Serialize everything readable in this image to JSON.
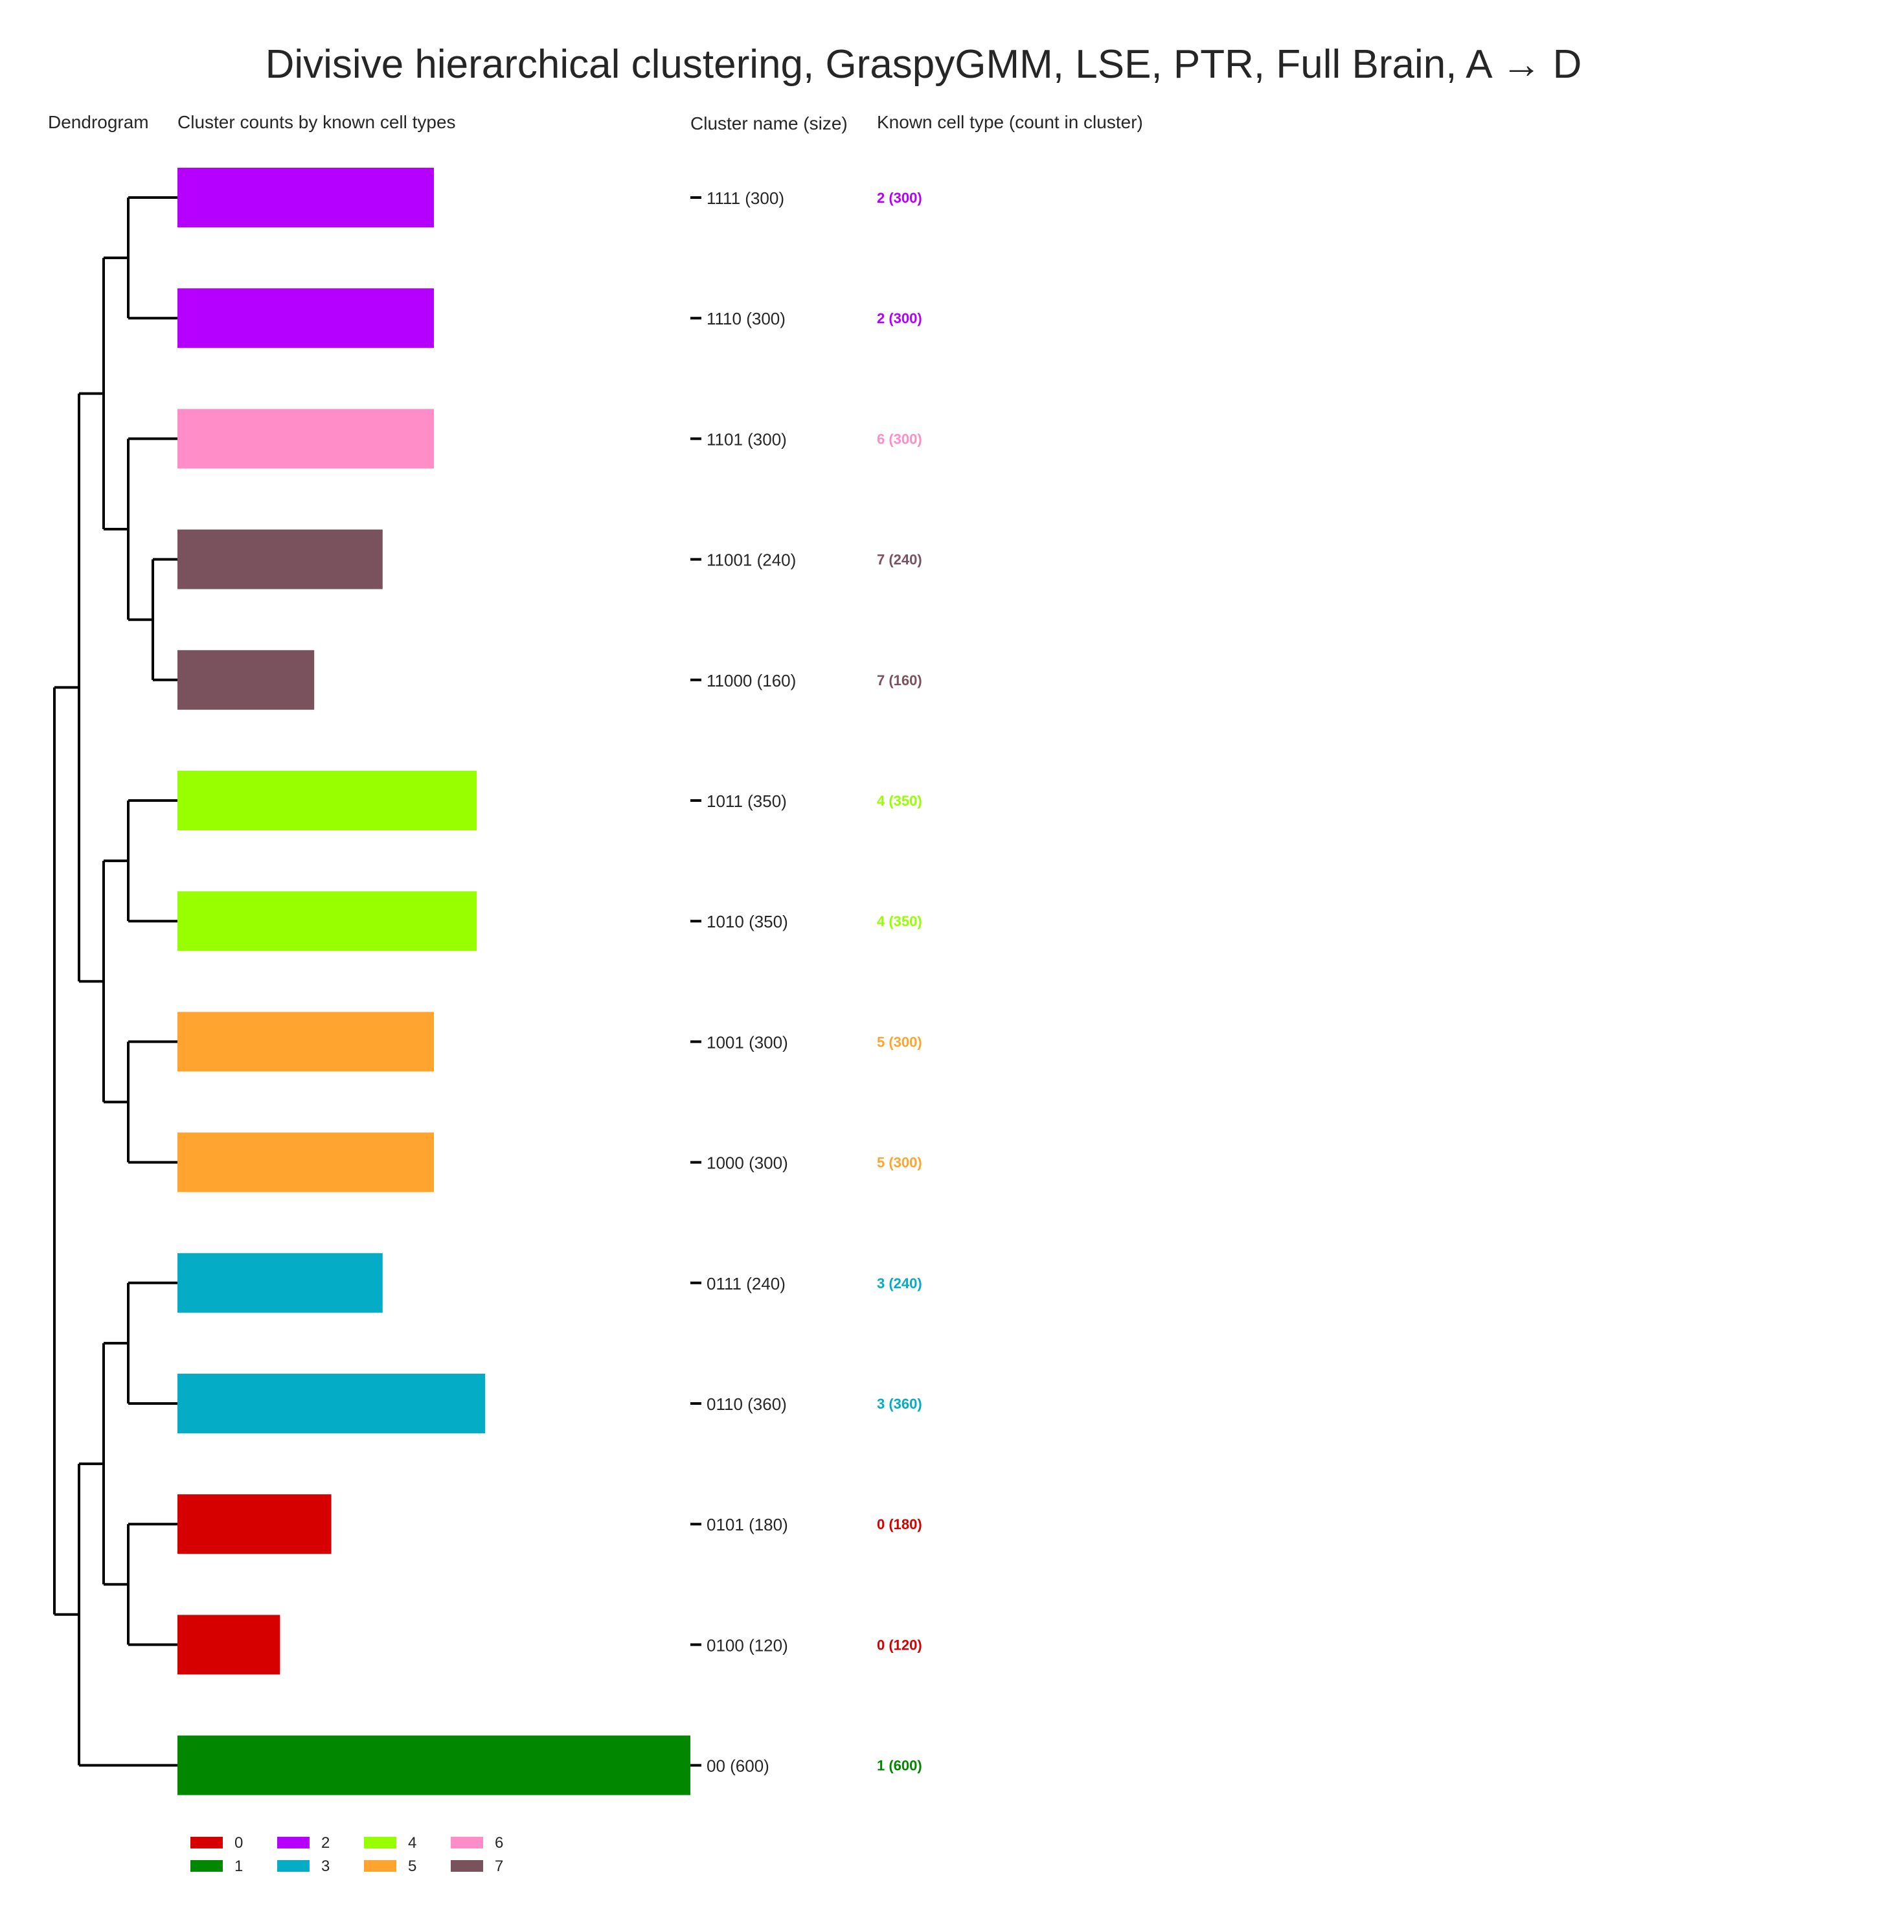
{
  "chart_data": {
    "type": "bar",
    "title": "Divisive hierarchical clustering, GraspyGMM, LSE, PTR, Full Brain, A → D",
    "column_headers": {
      "dendrogram": "Dendrogram",
      "counts": "Cluster counts by known cell types",
      "name": "Cluster name (size)",
      "known": "Known cell type (count in cluster)"
    },
    "xlim": [
      0,
      600
    ],
    "grid": false,
    "legend_position": "bottom-left",
    "colors": {
      "0": "#d60000",
      "1": "#018700",
      "2": "#b500ff",
      "3": "#05acc6",
      "4": "#97ff00",
      "5": "#ffa52f",
      "6": "#ff8ec8",
      "7": "#79525e"
    },
    "clusters": [
      {
        "name": "1111",
        "size": 300,
        "cell_type": "2",
        "count": 300,
        "name_label": "1111 (300)",
        "known_label": "2 (300)"
      },
      {
        "name": "1110",
        "size": 300,
        "cell_type": "2",
        "count": 300,
        "name_label": "1110 (300)",
        "known_label": "2 (300)"
      },
      {
        "name": "1101",
        "size": 300,
        "cell_type": "6",
        "count": 300,
        "name_label": "1101 (300)",
        "known_label": "6 (300)"
      },
      {
        "name": "11001",
        "size": 240,
        "cell_type": "7",
        "count": 240,
        "name_label": "11001 (240)",
        "known_label": "7 (240)"
      },
      {
        "name": "11000",
        "size": 160,
        "cell_type": "7",
        "count": 160,
        "name_label": "11000 (160)",
        "known_label": "7 (160)"
      },
      {
        "name": "1011",
        "size": 350,
        "cell_type": "4",
        "count": 350,
        "name_label": "1011 (350)",
        "known_label": "4 (350)"
      },
      {
        "name": "1010",
        "size": 350,
        "cell_type": "4",
        "count": 350,
        "name_label": "1010 (350)",
        "known_label": "4 (350)"
      },
      {
        "name": "1001",
        "size": 300,
        "cell_type": "5",
        "count": 300,
        "name_label": "1001 (300)",
        "known_label": "5 (300)"
      },
      {
        "name": "1000",
        "size": 300,
        "cell_type": "5",
        "count": 300,
        "name_label": "1000 (300)",
        "known_label": "5 (300)"
      },
      {
        "name": "0111",
        "size": 240,
        "cell_type": "3",
        "count": 240,
        "name_label": "0111 (240)",
        "known_label": "3 (240)"
      },
      {
        "name": "0110",
        "size": 360,
        "cell_type": "3",
        "count": 360,
        "name_label": "0110 (360)",
        "known_label": "3 (360)"
      },
      {
        "name": "0101",
        "size": 180,
        "cell_type": "0",
        "count": 180,
        "name_label": "0101 (180)",
        "known_label": "0 (180)"
      },
      {
        "name": "0100",
        "size": 120,
        "cell_type": "0",
        "count": 120,
        "name_label": "0100 (120)",
        "known_label": "0 (120)"
      },
      {
        "name": "00",
        "size": 600,
        "cell_type": "1",
        "count": 600,
        "name_label": "00 (600)",
        "known_label": "1 (600)"
      }
    ],
    "legend": [
      "0",
      "1",
      "2",
      "3",
      "4",
      "5",
      "6",
      "7"
    ]
  }
}
